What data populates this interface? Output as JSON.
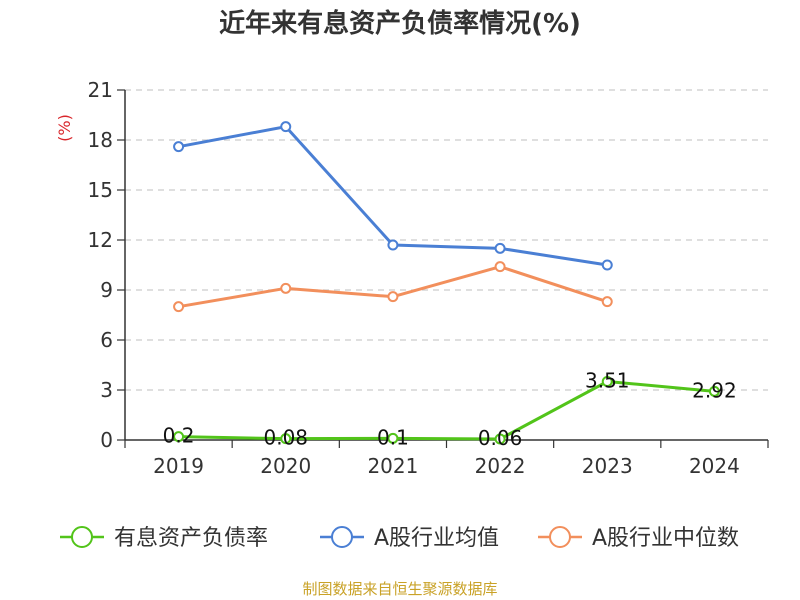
{
  "chart_data": {
    "type": "line",
    "title": "近年来有息资产负债率情况(%)",
    "ylabel": "(%)",
    "categories": [
      "2019",
      "2020",
      "2021",
      "2022",
      "2023",
      "2024"
    ],
    "ylim": [
      0,
      21
    ],
    "yticks": [
      "0",
      "3",
      "6",
      "9",
      "12",
      "15",
      "18",
      "21"
    ],
    "grid": true,
    "legend_position": "bottom",
    "series": [
      {
        "name": "有息资产负债率",
        "color": "#52c41a",
        "values": [
          0.2,
          0.08,
          0.1,
          0.06,
          3.51,
          2.92
        ],
        "labels": [
          "0.2",
          "0.08",
          "0.1",
          "0.06",
          "3.51",
          "2.92"
        ]
      },
      {
        "name": "A股行业均值",
        "color": "#4a7fd4",
        "values": [
          17.6,
          18.8,
          11.7,
          11.5,
          10.5,
          null
        ]
      },
      {
        "name": "A股行业中位数",
        "color": "#f28f5c",
        "values": [
          8.0,
          9.1,
          8.6,
          10.4,
          8.3,
          null
        ]
      }
    ]
  },
  "source": "制图数据来自恒生聚源数据库"
}
